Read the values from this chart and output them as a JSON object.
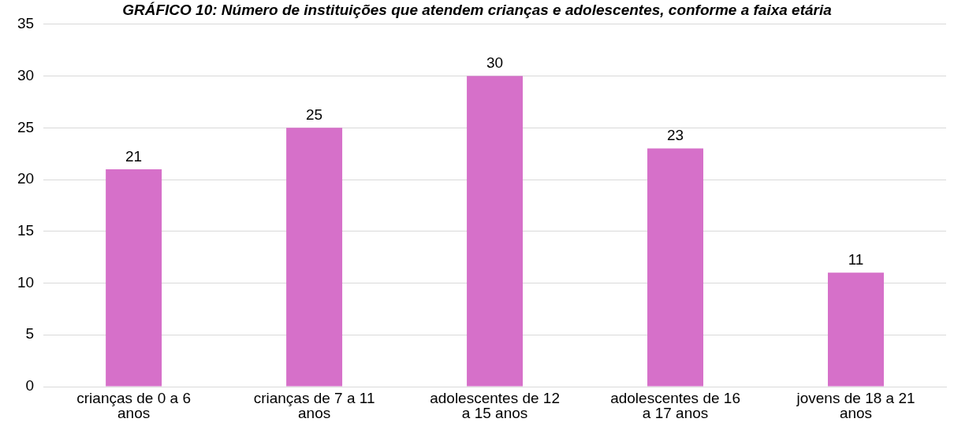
{
  "chart_data": {
    "type": "bar",
    "title": "GRÁFICO 10: Número de instituições que atendem crianças e adolescentes, conforme a faixa etária",
    "categories": [
      "crianças de 0 a 6 anos",
      "crianças de 7 a 11 anos",
      "adolescentes de 12 a 15 anos",
      "adolescentes de 16 a 17 anos",
      "jovens de 18 a 21 anos"
    ],
    "values": [
      21,
      25,
      30,
      23,
      11
    ],
    "color": "#d670c9",
    "ylim": [
      0,
      35
    ],
    "yticks": [
      0,
      5,
      10,
      15,
      20,
      25,
      30,
      35
    ],
    "grid": "y",
    "data_labels": true
  }
}
